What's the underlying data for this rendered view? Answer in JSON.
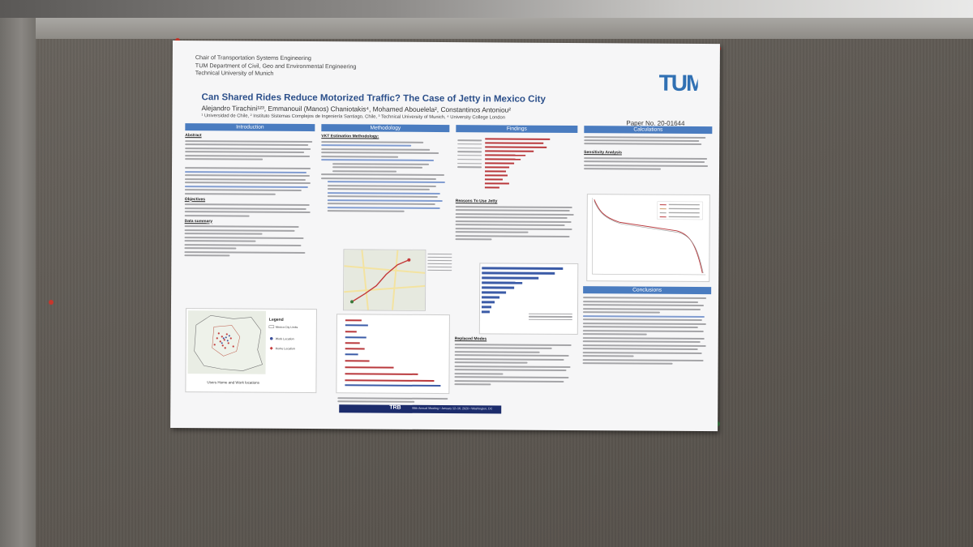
{
  "poster": {
    "header_lines": [
      "Chair of Transportation Systems Engineering",
      "TUM Department of Civil, Geo and Environmental Engineering",
      "Technical University of Munich"
    ],
    "logo_text": "TUM",
    "title": "Can Shared Rides Reduce Motorized Traffic? The Case of Jetty in Mexico City",
    "authors": "Alejandro Tirachini¹²³, Emmanouil (Manos) Chaniotakis⁴, Mohamed Abouelela², Constantinos Antoniou²",
    "affiliations": "¹ Universidad de Chile, ² Instituto Sistemas Complejos de Ingeniería Santiago, Chile, ³ Technical University of Munich, ⁴ University College London",
    "paper_no": "Paper No. 20-01644",
    "sections": {
      "introduction": "Introduction",
      "methodology": "Methodology",
      "findings": "Findings",
      "calculations": "Calculations",
      "conclusions": "Conclusions"
    },
    "subheads": {
      "abstract": "Abstract",
      "objectives": "Objectives",
      "data_summary": "Data summary",
      "vkt": "VKT Estimation Methodology:",
      "reasons": "Reasons To Use Jetty",
      "replaced": "Replaced Modes",
      "sensitivity": "Sensitivity Analysis"
    },
    "map_legend": {
      "title": "Legend",
      "items": [
        "Mexico City Limits",
        "Work Location",
        "Home Location"
      ]
    },
    "map_caption": "Users Home and Work locations",
    "footer_trb": "TRB",
    "footer_meeting": "99th Annual Meeting • January 12–16, 2020 • Washington, DC",
    "colors": {
      "accent": "#4a7cc0",
      "title": "#2b4f8a",
      "bar_red": "#b9383c",
      "bar_blue": "#3b5ba7"
    }
  }
}
